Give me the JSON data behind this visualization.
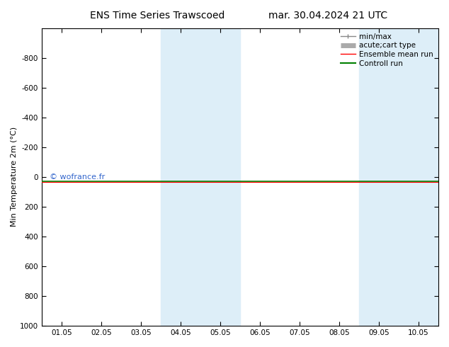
{
  "title_left": "ENS Time Series Trawscoed",
  "title_right": "mar. 30.04.2024 21 UTC",
  "ylabel": "Min Temperature 2m (°C)",
  "ylim_bottom": 1000,
  "ylim_top": -1000,
  "yticks": [
    -800,
    -600,
    -400,
    -200,
    0,
    200,
    400,
    600,
    800
  ],
  "ytick_labels": [
    "-800",
    "-600",
    "-400",
    "-200",
    "0",
    "200",
    "400",
    "600",
    "800"
  ],
  "bottom_tick": 1000,
  "xtick_labels": [
    "01.05",
    "02.05",
    "03.05",
    "04.05",
    "05.05",
    "06.05",
    "07.05",
    "08.05",
    "09.05",
    "10.05"
  ],
  "shade_bands": [
    {
      "xmin": 3,
      "xmax": 4
    },
    {
      "xmin": 8,
      "xmax": 9
    }
  ],
  "shade_color": "#ddeef8",
  "green_line_y": 30,
  "copyright_text": "© wofrance.fr",
  "legend_entries": [
    {
      "label": "min/max",
      "color": "#888888",
      "lw": 1.0
    },
    {
      "label": "acute;cart type",
      "color": "#aaaaaa",
      "lw": 5
    },
    {
      "label": "Ensemble mean run",
      "color": "red",
      "lw": 1.0
    },
    {
      "label": "Controll run",
      "color": "green",
      "lw": 1.5
    }
  ],
  "background_color": "white"
}
